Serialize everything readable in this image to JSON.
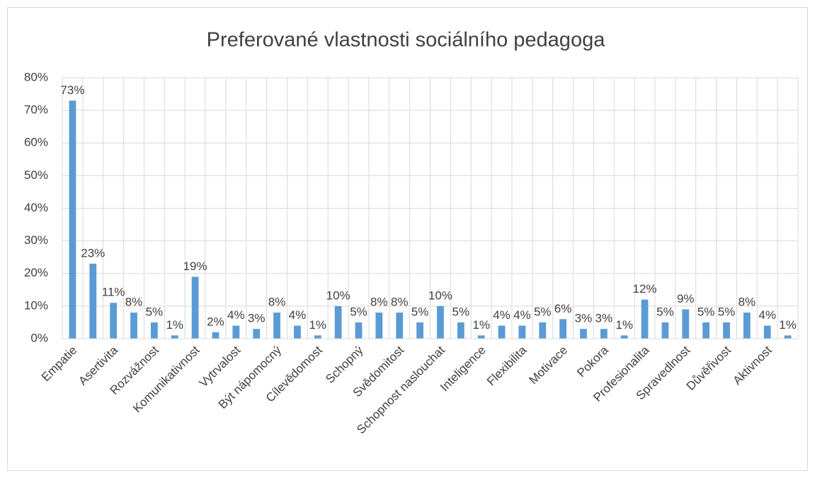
{
  "chart_data": {
    "type": "bar",
    "title": "Preferované vlastnosti sociálního pedagoga",
    "categories": [
      "Empatie",
      null,
      "Asertivita",
      null,
      "Rozvážnost",
      null,
      "Komunikativnost",
      null,
      "Vytrvalost",
      null,
      "Být nápomocný",
      null,
      "Cílevědomost",
      null,
      "Schopný",
      null,
      "Svědomitost",
      null,
      "Schopnost naslouchat",
      null,
      "Inteligence",
      null,
      "Flexibilita",
      null,
      "Motivace",
      null,
      "Pokora",
      null,
      "Profesionalita",
      null,
      "Spravedlnost",
      null,
      "Důvěřivost",
      null,
      "Aktivnost",
      null
    ],
    "values": [
      73,
      23,
      11,
      8,
      5,
      1,
      19,
      2,
      4,
      3,
      8,
      4,
      1,
      10,
      5,
      8,
      8,
      5,
      10,
      5,
      1,
      4,
      4,
      5,
      6,
      3,
      3,
      1,
      12,
      5,
      9,
      5,
      5,
      8,
      4,
      1
    ],
    "value_labels": [
      "73%",
      "23%",
      "11%",
      "8%",
      "5%",
      "1%",
      "19%",
      "2%",
      "4%",
      "3%",
      "8%",
      "4%",
      "1%",
      "10%",
      "5%",
      "8%",
      "8%",
      "5%",
      "10%",
      "5%",
      "1%",
      "4%",
      "4%",
      "5%",
      "6%",
      "3%",
      "3%",
      "1%",
      "12%",
      "5%",
      "9%",
      "5%",
      "5%",
      "8%",
      "4%",
      "1%"
    ],
    "color": "#5b9bd5",
    "ylim": [
      0,
      80
    ],
    "yticks": [
      {
        "value": 0,
        "label": "0%"
      },
      {
        "value": 10,
        "label": "10%"
      },
      {
        "value": 20,
        "label": "20%"
      },
      {
        "value": 30,
        "label": "30%"
      },
      {
        "value": 40,
        "label": "40%"
      },
      {
        "value": 50,
        "label": "50%"
      },
      {
        "value": 60,
        "label": "60%"
      },
      {
        "value": 70,
        "label": "70%"
      },
      {
        "value": 80,
        "label": "80%"
      }
    ],
    "grid": true
  }
}
